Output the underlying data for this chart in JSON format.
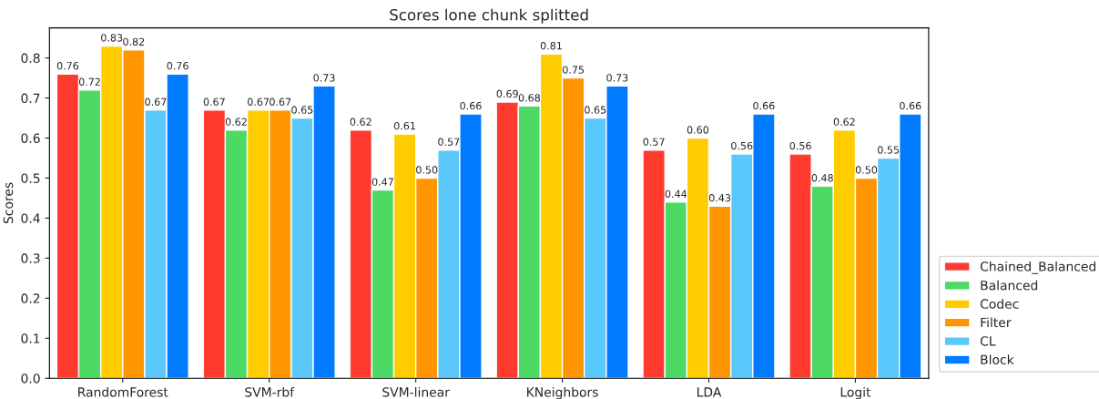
{
  "chart_data": {
    "type": "bar",
    "title": "Scores lone chunk splitted",
    "ylabel": "Scores",
    "categories": [
      "RandomForest",
      "SVM-rbf",
      "SVM-linear",
      "KNeighbors",
      "LDA",
      "Logit"
    ],
    "series": [
      {
        "name": "Chained_Balanced",
        "color": "#ff3b30",
        "values": [
          0.76,
          0.67,
          0.62,
          0.69,
          0.57,
          0.56
        ],
        "value_labels": [
          "0.76",
          "0.67",
          "0.62",
          "0.69",
          "0.57",
          "0.56"
        ]
      },
      {
        "name": "Balanced",
        "color": "#4cd964",
        "values": [
          0.72,
          0.62,
          0.47,
          0.68,
          0.44,
          0.48
        ],
        "value_labels": [
          "0.72",
          "0.62",
          "0.47",
          "0.68",
          "0.44",
          "0.48"
        ]
      },
      {
        "name": "Codec",
        "color": "#ffcc00",
        "values": [
          0.83,
          0.67,
          0.61,
          0.81,
          0.6,
          0.62
        ],
        "value_labels": [
          "0.83",
          "0.67",
          "0.61",
          "0.81",
          "0.60",
          "0.62"
        ]
      },
      {
        "name": "Filter",
        "color": "#ff9500",
        "values": [
          0.82,
          0.67,
          0.5,
          0.75,
          0.43,
          0.5
        ],
        "value_labels": [
          "0.82",
          "0.67",
          "0.50",
          "0.75",
          "0.43",
          "0.50"
        ]
      },
      {
        "name": "CL",
        "color": "#5ac8fa",
        "values": [
          0.67,
          0.65,
          0.57,
          0.65,
          0.56,
          0.55
        ],
        "value_labels": [
          "0.67",
          "0.65",
          "0.57",
          "0.65",
          "0.56",
          "0.55"
        ]
      },
      {
        "name": "Block",
        "color": "#007aff",
        "values": [
          0.76,
          0.73,
          0.66,
          0.73,
          0.66,
          0.66
        ],
        "value_labels": [
          "0.76",
          "0.73",
          "0.66",
          "0.73",
          "0.66",
          "0.66"
        ]
      }
    ],
    "ylim": [
      0,
      0.875
    ],
    "yticks": [
      {
        "value": 0,
        "label": "0.0"
      },
      0.1,
      0.2,
      0.3,
      0.4,
      0.5,
      0.6,
      0.7,
      0.8
    ],
    "legend": "bottom right",
    "grid": false
  }
}
